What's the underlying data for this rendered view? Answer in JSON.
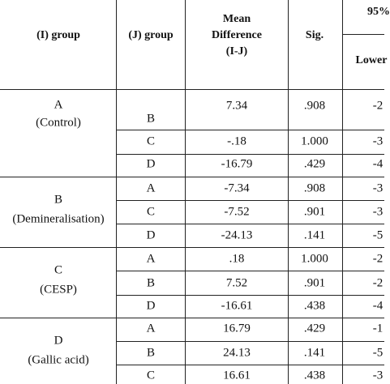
{
  "header": {
    "i_group": "(I) group",
    "j_group": "(J) group",
    "mean_difference": [
      "Mean",
      "Difference",
      "(I-J)"
    ],
    "sig": "Sig.",
    "confidence": "95%",
    "lower": "Lower"
  },
  "groups": [
    {
      "label": [
        "A",
        "(Control)"
      ],
      "rows": [
        [
          "B",
          "7.34",
          ".908",
          "-2"
        ],
        [
          "C",
          "-.18",
          "1.000",
          "-3"
        ],
        [
          "D",
          "-16.79",
          ".429",
          "-4"
        ]
      ]
    },
    {
      "label": [
        "B",
        "(Demineralisation)"
      ],
      "rows": [
        [
          "A",
          "-7.34",
          ".908",
          "-3"
        ],
        [
          "C",
          "-7.52",
          ".901",
          "-3"
        ],
        [
          "D",
          "-24.13",
          ".141",
          "-5"
        ]
      ]
    },
    {
      "label": [
        "C",
        "(CESP)"
      ],
      "rows": [
        [
          "A",
          ".18",
          "1.000",
          "-2"
        ],
        [
          "B",
          "7.52",
          ".901",
          "-2"
        ],
        [
          "D",
          "-16.61",
          ".438",
          "-4"
        ]
      ]
    },
    {
      "label": [
        "D",
        "(Gallic acid)"
      ],
      "rows": [
        [
          "A",
          "16.79",
          ".429",
          "-1"
        ],
        [
          "B",
          "24.13",
          ".141",
          "-5"
        ],
        [
          "C",
          "16.61",
          ".438",
          "-3"
        ]
      ]
    }
  ]
}
